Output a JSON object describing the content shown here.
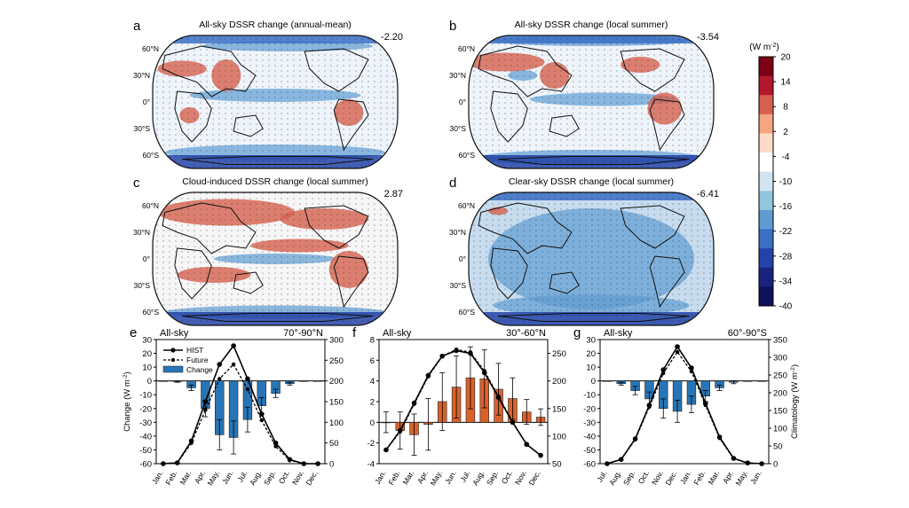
{
  "figure": {
    "maps": [
      {
        "letter": "a",
        "title": "All-sky DSSR change (annual-mean)",
        "value": "-2.20",
        "lat_labels": [
          "60°N",
          "30°N",
          "0°",
          "30°S",
          "60°S"
        ]
      },
      {
        "letter": "b",
        "title": "All-sky DSSR change (local summer)",
        "value": "-3.54",
        "lat_labels": [
          "60°N",
          "30°N",
          "0°",
          "30°S",
          "60°S"
        ]
      },
      {
        "letter": "c",
        "title": "Cloud-induced DSSR change (local summer)",
        "value": "2.87",
        "lat_labels": [
          "60°N",
          "30°N",
          "0°",
          "30°S",
          "60°S"
        ]
      },
      {
        "letter": "d",
        "title": "Clear-sky DSSR change (local summer)",
        "value": "-6.41",
        "lat_labels": [
          "60°N",
          "30°N",
          "0°",
          "30°S",
          "60°S"
        ]
      }
    ],
    "colorbar": {
      "unit_prefix": "(W m",
      "unit_sup": "-2",
      "unit_suffix": ")",
      "ticks": [
        "20",
        "14",
        "8",
        "2",
        "-4",
        "-10",
        "-16",
        "-22",
        "-28",
        "-34",
        "-40"
      ],
      "colors_top_to_bottom": [
        "#7a0015",
        "#b2182b",
        "#d6604d",
        "#f4a582",
        "#fddbc7",
        "#ffffff",
        "#d1e5f0",
        "#92c5de",
        "#5e9bd1",
        "#3a6fc4",
        "#2343a8",
        "#19237e",
        "#0d1158"
      ]
    },
    "bars_color": {
      "positive_panel": "#d9622b",
      "negative_panel": "#2775b6"
    }
  },
  "chart_data": [
    {
      "type": "bar",
      "panel": "e",
      "label": "All-sky",
      "region": "70°-90°N",
      "categories": [
        "Jan.",
        "Feb.",
        "Mar.",
        "Apr.",
        "May.",
        "Jun.",
        "Jul.",
        "Aug.",
        "Sep.",
        "Oct.",
        "Nov.",
        "Dec."
      ],
      "ylabel": "Change (W m",
      "ylabel_sup": "-2",
      "ylabel_suffix": ")",
      "ylim": [
        -60,
        30
      ],
      "yticks": [
        -60,
        -50,
        -40,
        -30,
        -20,
        -10,
        0,
        10,
        20,
        30
      ],
      "y2lim": [
        0,
        300
      ],
      "y2ticks": [
        0,
        50,
        100,
        150,
        200,
        250,
        300
      ],
      "legend": {
        "hist": "HIST",
        "future": "Future",
        "change": "Change"
      },
      "series": [
        {
          "name": "Change",
          "kind": "bar",
          "axis": "left",
          "values": [
            0,
            -0.5,
            -5,
            -20,
            -39,
            -41,
            -28,
            -18,
            -9,
            -2,
            0,
            0
          ],
          "error": [
            0,
            0.5,
            2,
            6,
            11,
            12,
            9,
            6,
            3,
            1,
            0,
            0
          ]
        },
        {
          "name": "HIST",
          "kind": "line",
          "axis": "right",
          "values": [
            0,
            2,
            55,
            150,
            240,
            285,
            205,
            120,
            50,
            10,
            0,
            0
          ]
        },
        {
          "name": "Future",
          "kind": "line-dashed",
          "axis": "right",
          "values": [
            0,
            2,
            50,
            130,
            205,
            240,
            180,
            105,
            42,
            8,
            0,
            0
          ]
        }
      ]
    },
    {
      "type": "bar",
      "panel": "f",
      "label": "All-sky",
      "region": "30°-60°N",
      "categories": [
        "Jan.",
        "Feb.",
        "Mar.",
        "Apr.",
        "May.",
        "Jun.",
        "Jul.",
        "Aug.",
        "Sep.",
        "Oct.",
        "Nov.",
        "Dec."
      ],
      "ylim": [
        -4,
        8
      ],
      "yticks": [
        -4,
        -2,
        0,
        2,
        4,
        6,
        8
      ],
      "y2lim": [
        50,
        275
      ],
      "y2ticks": [
        50,
        100,
        150,
        200,
        250
      ],
      "series": [
        {
          "name": "Change",
          "kind": "bar",
          "axis": "left",
          "values": [
            0,
            -0.8,
            -1.2,
            -0.2,
            2.0,
            3.4,
            4.3,
            4.2,
            3.2,
            2.3,
            1.0,
            0.5
          ],
          "error": [
            1.0,
            1.8,
            2.0,
            2.5,
            2.8,
            3.0,
            3.0,
            2.8,
            2.5,
            2.0,
            1.2,
            0.8
          ]
        },
        {
          "name": "HIST",
          "kind": "line",
          "axis": "right",
          "values": [
            75,
            110,
            160,
            210,
            245,
            255,
            250,
            215,
            170,
            125,
            85,
            65
          ]
        },
        {
          "name": "Future",
          "kind": "line-dashed",
          "axis": "right",
          "values": [
            75,
            108,
            158,
            208,
            245,
            257,
            252,
            218,
            172,
            126,
            85,
            65
          ]
        }
      ]
    },
    {
      "type": "bar",
      "panel": "g",
      "label": "All-sky",
      "region": "60°-90°S",
      "categories": [
        "Jul.",
        "Aug.",
        "Sep.",
        "Oct.",
        "Nov.",
        "Dec.",
        "Jan.",
        "Feb.",
        "Mar.",
        "Apr.",
        "May.",
        "Jun."
      ],
      "ylim": [
        -60,
        30
      ],
      "yticks": [
        -60,
        -50,
        -40,
        -30,
        -20,
        -10,
        0,
        10,
        20,
        30
      ],
      "y2label": "Climatology (W m",
      "y2label_sup": "-2",
      "y2label_suffix": ")",
      "y2lim": [
        0,
        350
      ],
      "y2ticks": [
        0,
        50,
        100,
        150,
        200,
        250,
        300,
        350
      ],
      "series": [
        {
          "name": "Change",
          "kind": "bar",
          "axis": "left",
          "values": [
            0,
            -2,
            -7,
            -13,
            -20,
            -22,
            -17,
            -11,
            -5,
            -1,
            0,
            0
          ],
          "error": [
            0,
            1,
            3,
            5,
            7,
            8,
            6,
            4,
            2,
            1,
            0,
            0
          ]
        },
        {
          "name": "HIST",
          "kind": "line",
          "axis": "right",
          "values": [
            0,
            12,
            70,
            165,
            265,
            330,
            270,
            170,
            75,
            15,
            2,
            0
          ]
        },
        {
          "name": "Future",
          "kind": "line-dashed",
          "axis": "right",
          "values": [
            0,
            12,
            68,
            160,
            255,
            315,
            260,
            165,
            72,
            14,
            2,
            0
          ]
        }
      ]
    }
  ]
}
